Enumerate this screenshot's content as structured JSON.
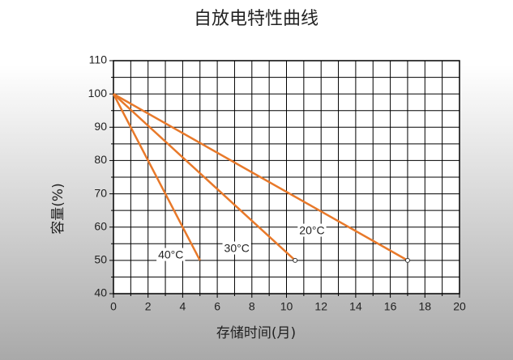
{
  "chart_data": {
    "type": "line",
    "title": "自放电特性曲线",
    "x_label": "存储时间(月)",
    "y_label": "容量(%)",
    "xlim": [
      0,
      20
    ],
    "xticks": [
      0,
      2,
      4,
      6,
      8,
      10,
      12,
      14,
      16,
      18,
      20
    ],
    "ylim": [
      40,
      110
    ],
    "yticks": [
      40,
      50,
      60,
      70,
      80,
      90,
      100,
      110
    ],
    "grid": true,
    "series": [
      {
        "name": "40°C",
        "color": "#e8792a",
        "x": [
          0,
          5
        ],
        "values": [
          100,
          50
        ],
        "end_marker": false
      },
      {
        "name": "30°C",
        "color": "#e8792a",
        "x": [
          0,
          10.5
        ],
        "values": [
          100,
          50
        ],
        "end_marker": true
      },
      {
        "name": "20°C",
        "color": "#e8792a",
        "x": [
          0,
          17
        ],
        "values": [
          100,
          50
        ],
        "end_marker": true
      }
    ]
  }
}
